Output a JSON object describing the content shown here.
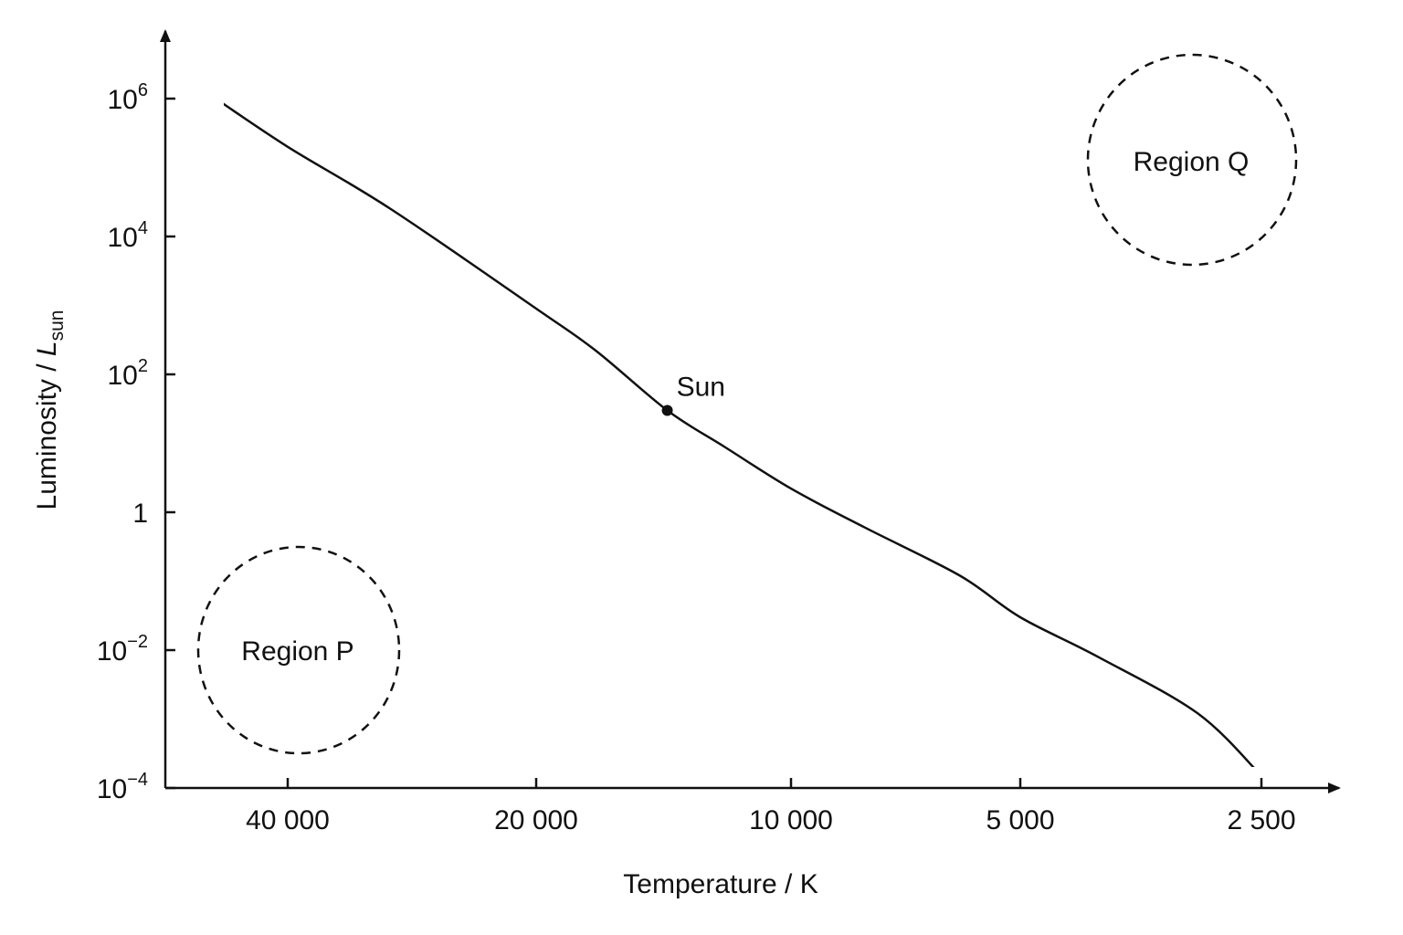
{
  "chart_data": {
    "type": "line",
    "title": "",
    "xlabel": "Temperature / K",
    "ylabel": "Luminosity / L sun",
    "ylabel_parts": {
      "main": "Luminosity / ",
      "symbol": "L",
      "subscript": "sun"
    },
    "x_scale": "log",
    "x_reversed": true,
    "y_scale": "log",
    "x_ticks": [
      {
        "value": 40000,
        "label": "40 000"
      },
      {
        "value": 20000,
        "label": "20 000"
      },
      {
        "value": 10000,
        "label": "10 000"
      },
      {
        "value": 5000,
        "label": "5 000"
      },
      {
        "value": 2500,
        "label": "2 500"
      }
    ],
    "y_ticks": [
      {
        "value": 0.0001,
        "base": "10",
        "exp": "−4"
      },
      {
        "value": 0.01,
        "base": "10",
        "exp": "−2"
      },
      {
        "value": 1,
        "base": "1",
        "exp": ""
      },
      {
        "value": 100,
        "base": "10",
        "exp": "2"
      },
      {
        "value": 10000,
        "base": "10",
        "exp": "4"
      },
      {
        "value": 1000000,
        "base": "10",
        "exp": "6"
      }
    ],
    "series": [
      {
        "x": [
          50000,
          40000,
          30000,
          20000,
          17000,
          14000,
          12000,
          10000,
          8000,
          6000,
          5000,
          4000,
          3000,
          2500
        ],
        "y": [
          1200000,
          200000,
          25000,
          900,
          220,
          30,
          9,
          2.2,
          0.6,
          0.12,
          0.03,
          0.008,
          0.0012,
          0.00015
        ]
      }
    ],
    "grid": false,
    "annotations": [
      {
        "id": "sun",
        "label": "Sun",
        "x": 14000,
        "y": 30
      },
      {
        "id": "region-p",
        "label": "Region P",
        "x": 40000,
        "y": 0.01
      },
      {
        "id": "region-q",
        "label": "Region Q",
        "x": 3000,
        "y": 200000
      }
    ]
  }
}
